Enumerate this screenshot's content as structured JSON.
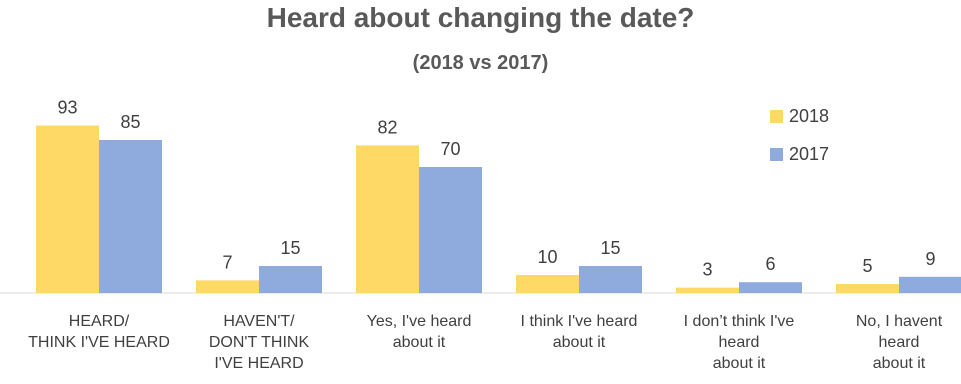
{
  "chart_data": {
    "type": "bar",
    "title": "Heard about changing the date?",
    "subtitle": "(2018 vs 2017)",
    "categories": [
      "HEARD/\nTHINK I'VE HEARD",
      "HAVEN'T/\nDON'T THINK\nI'VE HEARD",
      "Yes, I've heard\nabout it",
      "I think I've heard\nabout it",
      "I don’t think I've\nheard\nabout it",
      "No, I havent\nheard\nabout it"
    ],
    "series": [
      {
        "name": "2018",
        "color": "#FFD966",
        "values": [
          93,
          7,
          82,
          10,
          3,
          5
        ]
      },
      {
        "name": "2017",
        "color": "#8FAADC",
        "values": [
          85,
          15,
          70,
          15,
          6,
          9
        ]
      }
    ],
    "ylim": [
      0,
      100
    ],
    "grid": false,
    "legend": "top-right",
    "data_labels": true
  }
}
